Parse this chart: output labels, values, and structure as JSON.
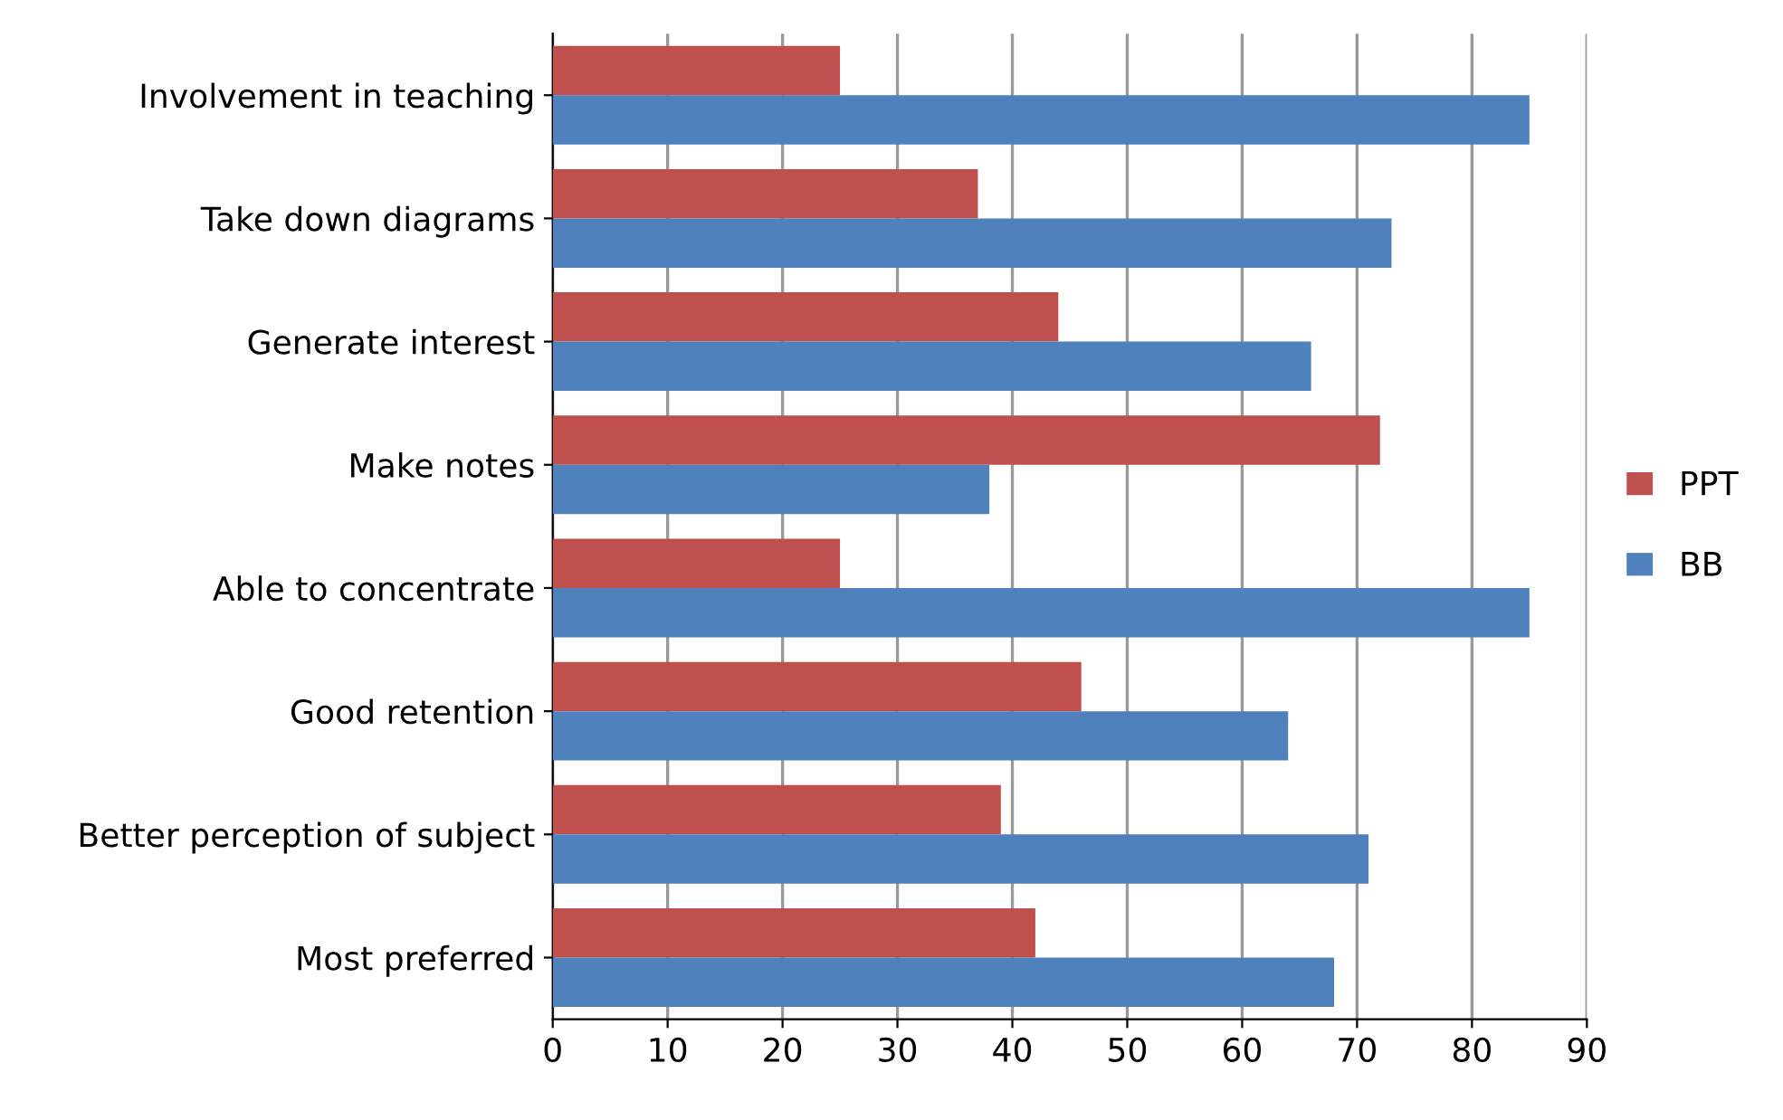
{
  "chart_data": {
    "type": "bar",
    "orientation": "horizontal",
    "categories": [
      "Involvement in teaching",
      "Take down diagrams",
      "Generate interest",
      "Make notes",
      "Able to concentrate",
      "Good retention",
      "Better perception of subject",
      "Most preferred"
    ],
    "series": [
      {
        "name": "PPT",
        "color": "#c0504d",
        "values": [
          25,
          37,
          44,
          72,
          25,
          46,
          39,
          42
        ]
      },
      {
        "name": "BB",
        "color": "#4f81bd",
        "values": [
          85,
          73,
          66,
          38,
          85,
          64,
          71,
          68
        ]
      }
    ],
    "xlim": [
      0,
      90
    ],
    "xticks": [
      0,
      10,
      20,
      30,
      40,
      50,
      60,
      70,
      80,
      90
    ],
    "grid": "x",
    "legend": "right"
  }
}
